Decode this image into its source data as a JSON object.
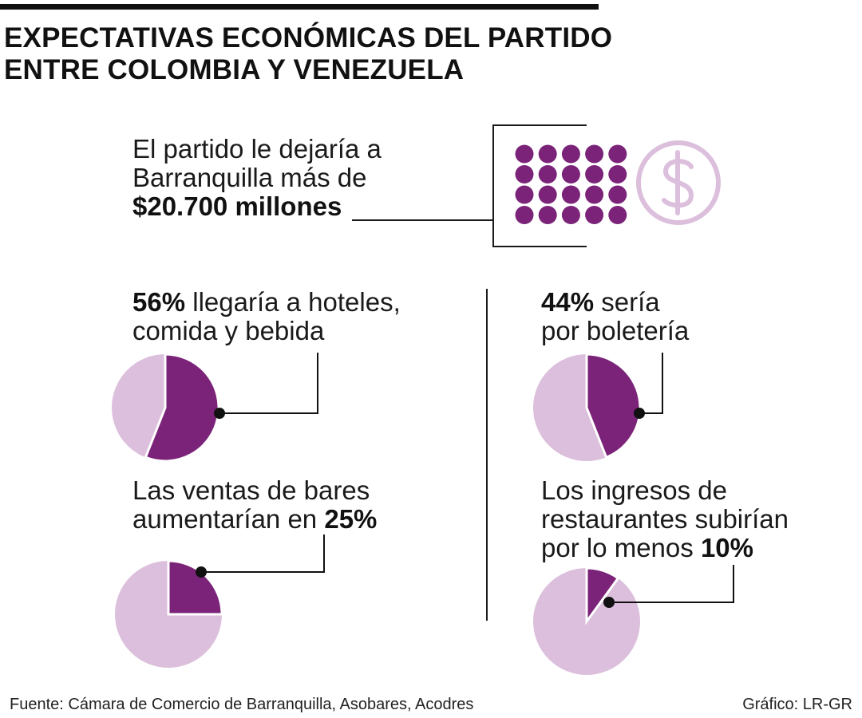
{
  "title": {
    "line1": "EXPECTATIVAS ECONÓMICAS DEL PARTIDO",
    "line2": "ENTRE COLOMBIA Y VENEZUELA"
  },
  "headline": {
    "line1": "El partido le dejaría a",
    "line2": "Barranquilla más de",
    "amount": "$20.700 millones"
  },
  "icons": {
    "coins": "coin-grid-icon",
    "dollar": "dollar-circle-icon"
  },
  "colors": {
    "primary": "#7b2378",
    "light": "#dcbfdc",
    "ink": "#111111"
  },
  "chart_data": [
    {
      "type": "pie",
      "highlight_value": 56,
      "label_value": "56%",
      "label_text_l1": "llegaría a hoteles,",
      "label_text_l2": "comida y bebida"
    },
    {
      "type": "pie",
      "highlight_value": 44,
      "label_value": "44%",
      "label_text_l1": "sería",
      "label_text_l2": "por boletería"
    },
    {
      "type": "pie",
      "highlight_value": 25,
      "label_text_l1": "Las ventas de bares",
      "label_text_l2": "aumentarían en",
      "label_value": "25%"
    },
    {
      "type": "pie",
      "highlight_value": 10,
      "label_text_l1": "Los ingresos de",
      "label_text_l2": "restaurantes subirían",
      "label_text_l3": "por lo menos",
      "label_value": "10%"
    }
  ],
  "footer": {
    "source": "Fuente: Cámara de Comercio de Barranquilla, Asobares, Acodres",
    "credit": "Gráfico: LR-GR"
  }
}
